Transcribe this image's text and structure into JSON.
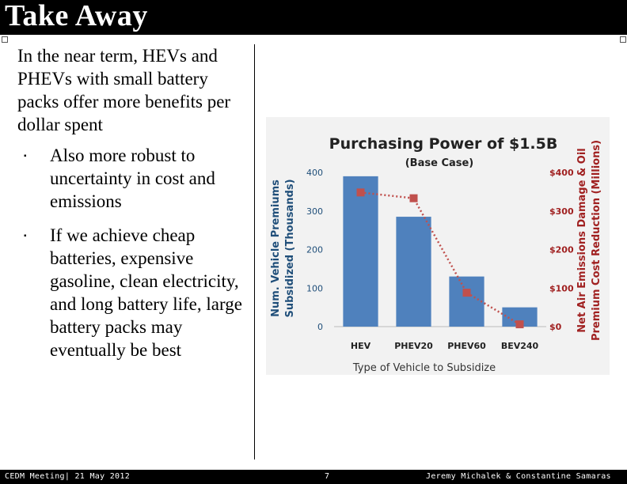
{
  "slide": {
    "title": "Take Away",
    "intro": "In the near term, HEVs and PHEVs with small battery packs offer more benefits per dollar spent",
    "bullets": [
      "Also more robust to uncertainty in cost and emissions",
      "If we achieve cheap batteries, expensive gasoline, clean electricity, and long battery life, large battery packs may eventually be best"
    ],
    "bullet_symbol": "▪"
  },
  "footer": {
    "left": "CEDM Meeting| 21 May 2012",
    "page": "7",
    "right": "Jeremy Michalek & Constantine Samaras"
  },
  "chart_data": {
    "type": "bar",
    "title": "Purchasing Power of $1.5B",
    "subtitle": "(Base Case)",
    "xlabel": "Type of Vehicle to Subsidize",
    "ylabel_left": [
      "Num. Vehicle Premiums",
      "Subsidized (Thousands)"
    ],
    "ylabel_right": [
      "Net Air Emissions Damage & Oil",
      "Premium Cost Reduction (Millions)"
    ],
    "categories": [
      "HEV",
      "PHEV20",
      "PHEV60",
      "BEV240"
    ],
    "ylim_left": [
      0,
      400
    ],
    "yticks_left": [
      "0",
      "100",
      "200",
      "300",
      "400"
    ],
    "ylim_right": [
      0,
      400
    ],
    "yticks_right": [
      "$0",
      "$100",
      "$200",
      "$300",
      "$400"
    ],
    "series": [
      {
        "name": "Num. Vehicle Premiums Subsidized",
        "kind": "bar",
        "axis": "left",
        "color": "#4f81bd",
        "values": [
          390,
          285,
          130,
          50
        ]
      },
      {
        "name": "Net Air Emissions Damage & Oil Premium Cost Reduction",
        "kind": "line",
        "axis": "right",
        "color": "#c0504d",
        "values": [
          348,
          333,
          88,
          6
        ]
      }
    ],
    "colors": {
      "left_axis": "#1f4e79",
      "right_axis": "#a02020"
    }
  }
}
